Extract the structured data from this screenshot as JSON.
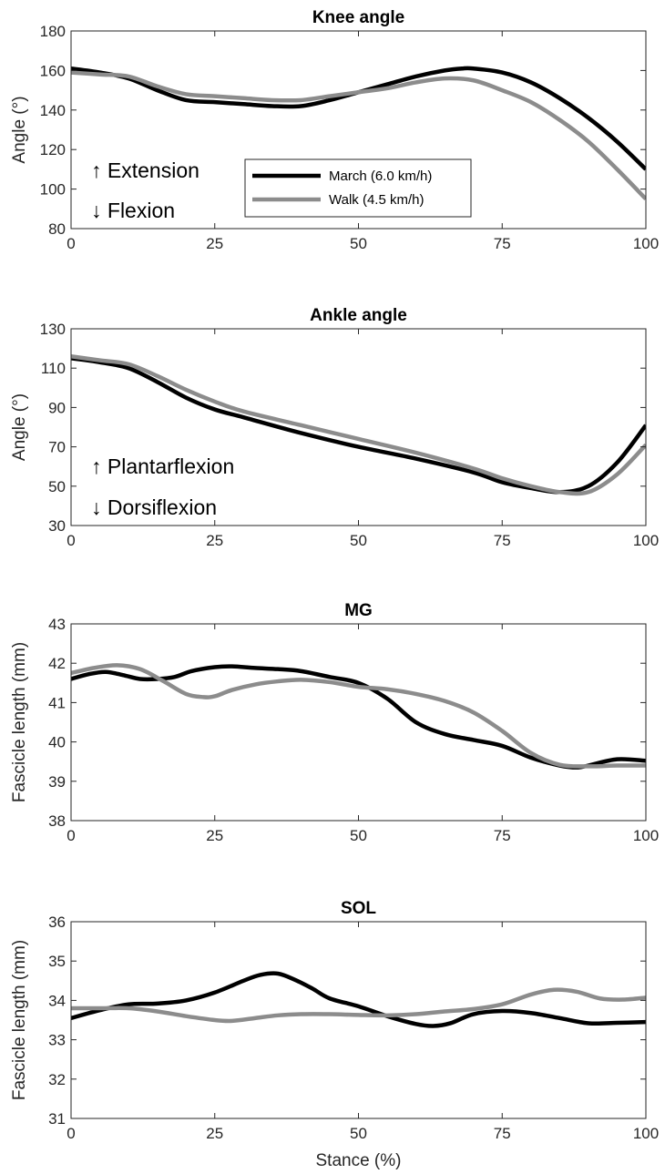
{
  "chart_data": [
    {
      "type": "line",
      "title": "Knee angle",
      "xlabel": "",
      "ylabel": "Angle (°)",
      "xlim": [
        0,
        100
      ],
      "ylim": [
        80,
        180
      ],
      "xticks": [
        0,
        25,
        50,
        75,
        100
      ],
      "yticks": [
        80,
        100,
        120,
        140,
        160,
        180
      ],
      "grid": false,
      "annotations": [
        "↑ Extension",
        "↓ Flexion"
      ],
      "legend": {
        "placement": "inside-lower-middle",
        "entries": [
          "March (6.0 km/h)",
          "Walk (4.5 km/h)"
        ]
      },
      "series": [
        {
          "name": "March (6.0 km/h)",
          "color": "#000000",
          "x": [
            0,
            5,
            10,
            15,
            20,
            25,
            30,
            35,
            40,
            45,
            50,
            55,
            60,
            65,
            68,
            70,
            75,
            80,
            85,
            90,
            95,
            100
          ],
          "y": [
            161,
            159,
            156,
            150,
            145,
            144,
            143,
            142,
            142,
            145,
            149,
            153,
            157,
            160,
            161,
            161,
            159,
            154,
            146,
            136,
            124,
            110
          ]
        },
        {
          "name": "Walk (4.5 km/h)",
          "color": "#8c8c8c",
          "x": [
            0,
            5,
            10,
            15,
            20,
            25,
            30,
            35,
            40,
            45,
            50,
            55,
            60,
            65,
            70,
            75,
            80,
            85,
            90,
            95,
            100
          ],
          "y": [
            159,
            158,
            157,
            152,
            148,
            147,
            146,
            145,
            145,
            147,
            149,
            151,
            154,
            156,
            155,
            150,
            144,
            135,
            124,
            110,
            95
          ]
        }
      ]
    },
    {
      "type": "line",
      "title": "Ankle angle",
      "xlabel": "",
      "ylabel": "Angle (°)",
      "xlim": [
        0,
        100
      ],
      "ylim": [
        30,
        130
      ],
      "xticks": [
        0,
        25,
        50,
        75,
        100
      ],
      "yticks": [
        30,
        50,
        70,
        90,
        110,
        130
      ],
      "grid": false,
      "annotations": [
        "↑ Plantarflexion",
        "↓ Dorsiflexion"
      ],
      "series": [
        {
          "name": "March (6.0 km/h)",
          "color": "#000000",
          "x": [
            0,
            5,
            10,
            15,
            20,
            25,
            30,
            40,
            50,
            60,
            70,
            75,
            80,
            85,
            90,
            95,
            100
          ],
          "y": [
            115,
            113,
            110,
            103,
            95,
            89,
            85,
            77,
            70,
            64,
            57,
            52,
            49,
            47,
            50,
            62,
            81
          ]
        },
        {
          "name": "Walk (4.5 km/h)",
          "color": "#8c8c8c",
          "x": [
            0,
            5,
            10,
            15,
            20,
            25,
            30,
            40,
            50,
            60,
            70,
            75,
            80,
            85,
            90,
            95,
            100
          ],
          "y": [
            116,
            114,
            112,
            106,
            99,
            93,
            88,
            81,
            74,
            67,
            59,
            54,
            50,
            47,
            47,
            56,
            71
          ]
        }
      ]
    },
    {
      "type": "line",
      "title": "MG",
      "xlabel": "",
      "ylabel": "Fascicle length (mm)",
      "xlim": [
        0,
        100
      ],
      "ylim": [
        38,
        43
      ],
      "xticks": [
        0,
        25,
        50,
        75,
        100
      ],
      "yticks": [
        38,
        39,
        40,
        41,
        42,
        43
      ],
      "grid": false,
      "series": [
        {
          "name": "March (6.0 km/h)",
          "color": "#000000",
          "x": [
            0,
            3,
            6,
            9,
            12,
            15,
            18,
            21,
            25,
            28,
            32,
            36,
            40,
            45,
            50,
            55,
            60,
            65,
            70,
            75,
            80,
            85,
            88,
            90,
            95,
            100
          ],
          "y": [
            41.6,
            41.72,
            41.78,
            41.7,
            41.6,
            41.6,
            41.65,
            41.8,
            41.9,
            41.92,
            41.88,
            41.85,
            41.8,
            41.65,
            41.5,
            41.1,
            40.5,
            40.2,
            40.05,
            39.9,
            39.6,
            39.4,
            39.35,
            39.4,
            39.56,
            39.52
          ]
        },
        {
          "name": "Walk (4.5 km/h)",
          "color": "#8c8c8c",
          "x": [
            0,
            4,
            8,
            12,
            16,
            20,
            23,
            25,
            28,
            32,
            36,
            40,
            45,
            50,
            55,
            60,
            65,
            70,
            75,
            80,
            85,
            90,
            95,
            100
          ],
          "y": [
            41.75,
            41.88,
            41.95,
            41.85,
            41.55,
            41.22,
            41.14,
            41.16,
            41.32,
            41.46,
            41.54,
            41.58,
            41.52,
            41.4,
            41.34,
            41.22,
            41.04,
            40.75,
            40.28,
            39.72,
            39.42,
            39.38,
            39.4,
            39.4
          ]
        }
      ]
    },
    {
      "type": "line",
      "title": "SOL",
      "xlabel": "Stance (%)",
      "ylabel": "Fascicle length (mm)",
      "xlim": [
        0,
        100
      ],
      "ylim": [
        31,
        36
      ],
      "xticks": [
        0,
        25,
        50,
        75,
        100
      ],
      "yticks": [
        31,
        32,
        33,
        34,
        35,
        36
      ],
      "grid": false,
      "series": [
        {
          "name": "March (6.0 km/h)",
          "color": "#000000",
          "x": [
            0,
            5,
            10,
            15,
            20,
            25,
            30,
            33,
            36,
            39,
            42,
            45,
            50,
            55,
            60,
            63,
            66,
            70,
            75,
            80,
            85,
            90,
            95,
            100
          ],
          "y": [
            33.55,
            33.75,
            33.9,
            33.92,
            34.0,
            34.2,
            34.5,
            34.65,
            34.68,
            34.52,
            34.3,
            34.05,
            33.85,
            33.6,
            33.4,
            33.35,
            33.42,
            33.65,
            33.73,
            33.68,
            33.55,
            33.42,
            33.43,
            33.45
          ]
        },
        {
          "name": "Walk (4.5 km/h)",
          "color": "#8c8c8c",
          "x": [
            0,
            5,
            10,
            15,
            20,
            25,
            28,
            32,
            36,
            40,
            45,
            50,
            55,
            60,
            65,
            70,
            75,
            80,
            84,
            88,
            92,
            96,
            100
          ],
          "y": [
            33.8,
            33.8,
            33.8,
            33.72,
            33.6,
            33.5,
            33.48,
            33.55,
            33.62,
            33.65,
            33.65,
            33.63,
            33.62,
            33.65,
            33.72,
            33.78,
            33.9,
            34.15,
            34.27,
            34.22,
            34.05,
            34.02,
            34.07
          ]
        }
      ]
    }
  ]
}
